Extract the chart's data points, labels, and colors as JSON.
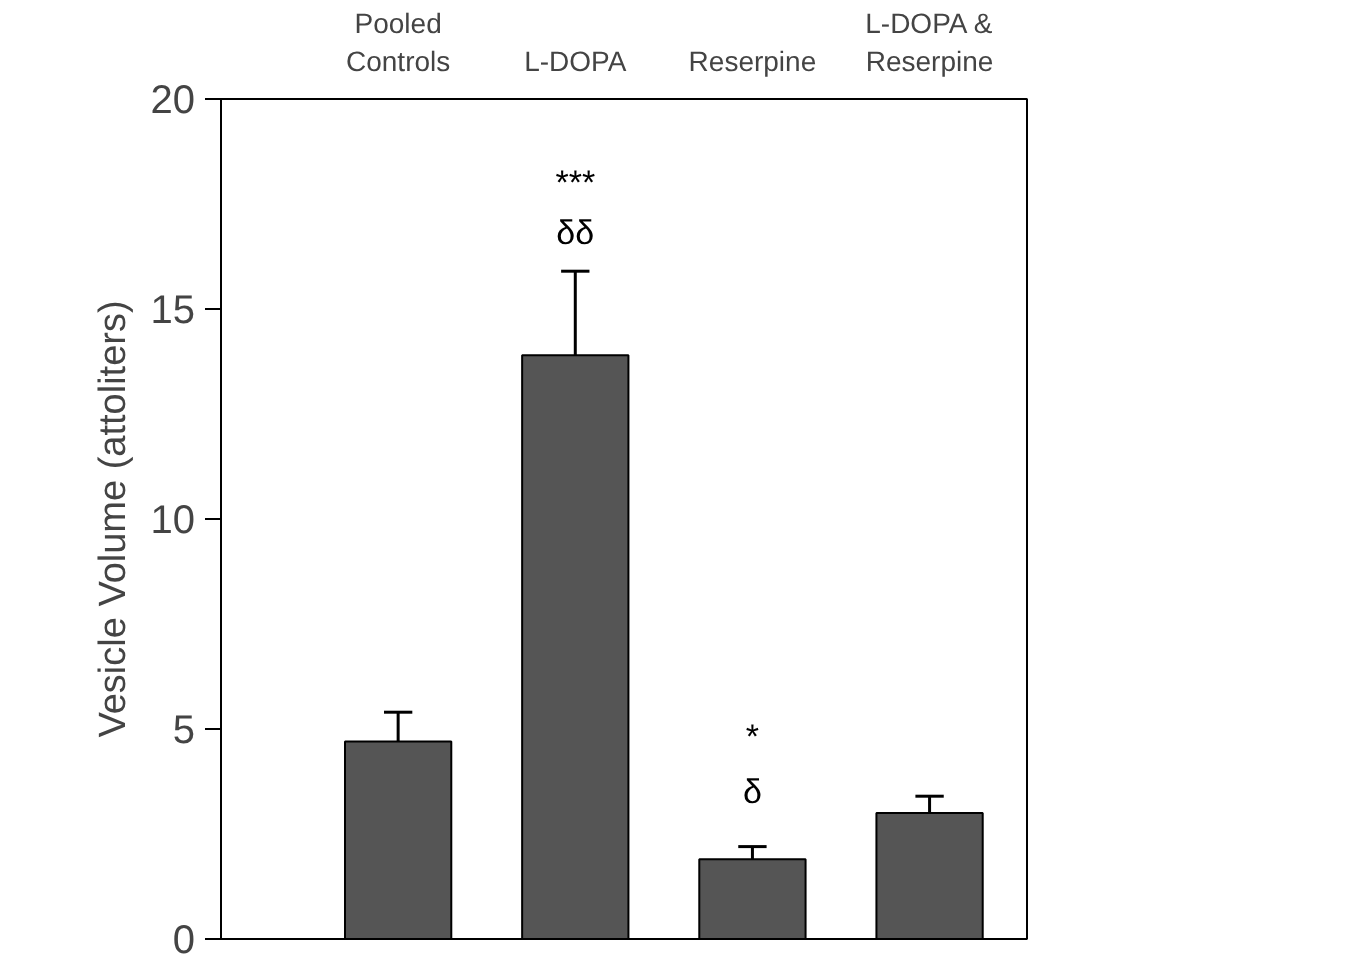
{
  "chart_data": {
    "type": "bar",
    "ylabel": "Vesicle Volume (attoliters)",
    "categories": [
      "Pooled\nControls",
      "L-DOPA",
      "Reserpine",
      "L-DOPA &\nReserpine"
    ],
    "values": [
      4.7,
      13.9,
      1.9,
      3.0
    ],
    "errors": [
      [
        4.7,
        5.4
      ],
      [
        13.9,
        15.9
      ],
      [
        1.9,
        2.2
      ],
      [
        3.0,
        3.4
      ]
    ],
    "color": "#555555",
    "ylim": [
      0,
      20
    ],
    "yticks": [
      0,
      5,
      10,
      15,
      20
    ],
    "grid": false,
    "annotations": [
      "***",
      "δδ",
      "*",
      "δ"
    ]
  }
}
